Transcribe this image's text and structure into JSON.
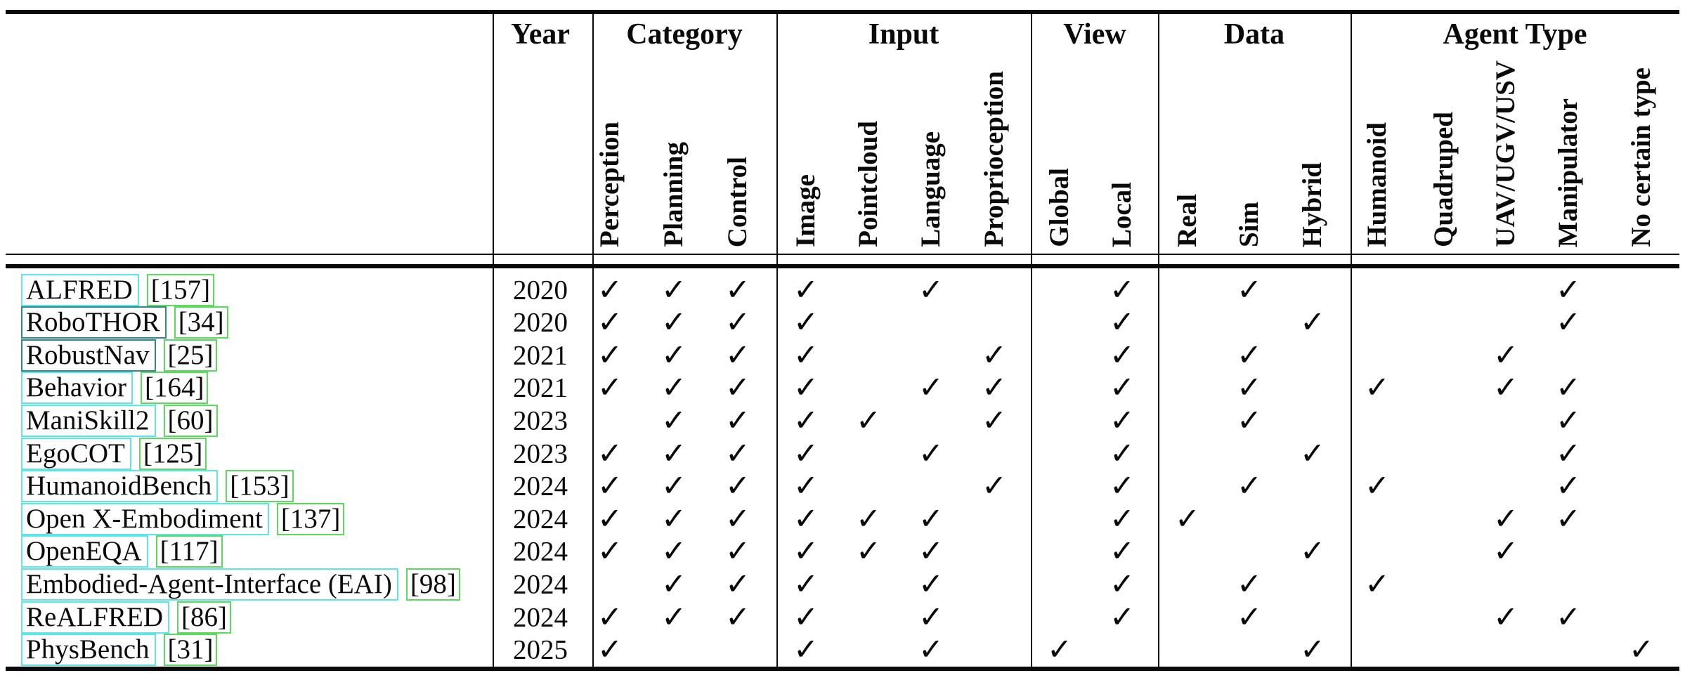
{
  "colors": {
    "text": "#0a0a0a",
    "rule": "#0a0a0a",
    "name_link_border": "#5ce6e6",
    "name_link_border_dark": "#2e8b8b",
    "cite_link_border": "#5bdb5b"
  },
  "glyphs": {
    "checkmark": "✓"
  },
  "table": {
    "group_headers": [
      {
        "id": "year",
        "label": "Year"
      },
      {
        "id": "category",
        "label": "Category"
      },
      {
        "id": "input",
        "label": "Input"
      },
      {
        "id": "view",
        "label": "View"
      },
      {
        "id": "data",
        "label": "Data"
      },
      {
        "id": "agent_type",
        "label": "Agent Type"
      }
    ],
    "columns": [
      {
        "id": "perception",
        "label": "Perception",
        "group": "category"
      },
      {
        "id": "planning",
        "label": "Planning",
        "group": "category"
      },
      {
        "id": "control",
        "label": "Control",
        "group": "category"
      },
      {
        "id": "image",
        "label": "Image",
        "group": "input"
      },
      {
        "id": "pointcloud",
        "label": "Pointcloud",
        "group": "input"
      },
      {
        "id": "language",
        "label": "Language",
        "group": "input"
      },
      {
        "id": "proprioception",
        "label": "Proprioception",
        "group": "input"
      },
      {
        "id": "global",
        "label": "Global",
        "group": "view"
      },
      {
        "id": "local",
        "label": "Local",
        "group": "view"
      },
      {
        "id": "real",
        "label": "Real",
        "group": "data"
      },
      {
        "id": "sim",
        "label": "Sim",
        "group": "data"
      },
      {
        "id": "hybrid",
        "label": "Hybrid",
        "group": "data"
      },
      {
        "id": "humanoid",
        "label": "Humanoid",
        "group": "agent_type"
      },
      {
        "id": "quadruped",
        "label": "Quadruped",
        "group": "agent_type"
      },
      {
        "id": "uav_ugv_usv",
        "label": "UAV/UGV/USV",
        "group": "agent_type"
      },
      {
        "id": "manipulator",
        "label": "Manipulator",
        "group": "agent_type"
      },
      {
        "id": "no_certain_type",
        "label": "No certain type",
        "group": "agent_type"
      }
    ],
    "rows": [
      {
        "name": "ALFRED",
        "citation": "[157]",
        "year": "2020",
        "link_style": "light",
        "checks": [
          "perception",
          "planning",
          "control",
          "image",
          "language",
          "local",
          "sim",
          "manipulator"
        ]
      },
      {
        "name": "RoboTHOR",
        "citation": "[34]",
        "year": "2020",
        "link_style": "dark",
        "checks": [
          "perception",
          "planning",
          "control",
          "image",
          "local",
          "hybrid",
          "manipulator"
        ]
      },
      {
        "name": "RobustNav",
        "citation": "[25]",
        "year": "2021",
        "link_style": "dark",
        "checks": [
          "perception",
          "planning",
          "control",
          "image",
          "proprioception",
          "local",
          "sim",
          "uav_ugv_usv"
        ]
      },
      {
        "name": "Behavior",
        "citation": "[164]",
        "year": "2021",
        "link_style": "light",
        "checks": [
          "perception",
          "planning",
          "control",
          "image",
          "language",
          "proprioception",
          "local",
          "sim",
          "humanoid",
          "uav_ugv_usv",
          "manipulator"
        ]
      },
      {
        "name": "ManiSkill2",
        "citation": "[60]",
        "year": "2023",
        "link_style": "light",
        "checks": [
          "planning",
          "control",
          "image",
          "pointcloud",
          "proprioception",
          "local",
          "sim",
          "manipulator"
        ]
      },
      {
        "name": "EgoCOT",
        "citation": "[125]",
        "year": "2023",
        "link_style": "light",
        "checks": [
          "perception",
          "planning",
          "control",
          "image",
          "language",
          "local",
          "hybrid",
          "manipulator"
        ]
      },
      {
        "name": "HumanoidBench",
        "citation": "[153]",
        "year": "2024",
        "link_style": "light",
        "checks": [
          "perception",
          "planning",
          "control",
          "image",
          "proprioception",
          "local",
          "sim",
          "humanoid",
          "manipulator"
        ]
      },
      {
        "name": "Open X-Embodiment",
        "citation": "[137]",
        "year": "2024",
        "link_style": "light",
        "checks": [
          "perception",
          "planning",
          "control",
          "image",
          "pointcloud",
          "language",
          "local",
          "real",
          "uav_ugv_usv",
          "manipulator"
        ]
      },
      {
        "name": "OpenEQA",
        "citation": "[117]",
        "year": "2024",
        "link_style": "light",
        "checks": [
          "perception",
          "planning",
          "control",
          "image",
          "pointcloud",
          "language",
          "local",
          "hybrid",
          "uav_ugv_usv"
        ]
      },
      {
        "name": "Embodied-Agent-Interface (EAI)",
        "citation": "[98]",
        "year": "2024",
        "link_style": "light",
        "checks": [
          "planning",
          "control",
          "image",
          "language",
          "local",
          "sim",
          "humanoid"
        ]
      },
      {
        "name": "ReALFRED",
        "citation": "[86]",
        "year": "2024",
        "link_style": "light",
        "checks": [
          "perception",
          "planning",
          "control",
          "image",
          "language",
          "local",
          "sim",
          "uav_ugv_usv",
          "manipulator"
        ]
      },
      {
        "name": "PhysBench",
        "citation": "[31]",
        "year": "2025",
        "link_style": "light",
        "checks": [
          "perception",
          "image",
          "language",
          "global",
          "hybrid",
          "no_certain_type"
        ]
      }
    ]
  }
}
